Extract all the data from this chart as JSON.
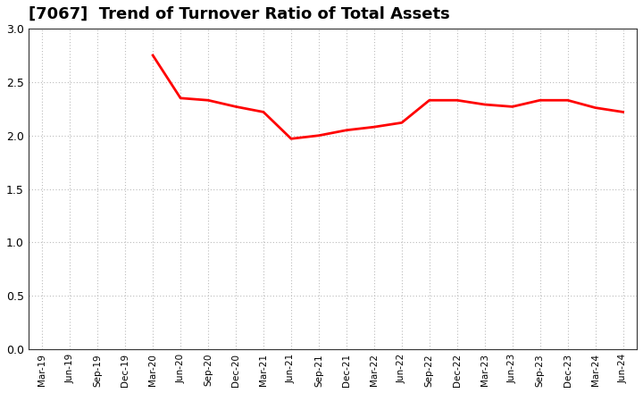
{
  "title": "[7067]  Trend of Turnover Ratio of Total Assets",
  "title_fontsize": 13,
  "line_color": "#FF0000",
  "line_width": 2.0,
  "background_color": "#FFFFFF",
  "grid_color": "#BBBBBB",
  "ylim": [
    0.0,
    3.0
  ],
  "yticks": [
    0.0,
    0.5,
    1.0,
    1.5,
    2.0,
    2.5,
    3.0
  ],
  "x_labels": [
    "Mar-19",
    "Jun-19",
    "Sep-19",
    "Dec-19",
    "Mar-20",
    "Jun-20",
    "Sep-20",
    "Dec-20",
    "Mar-21",
    "Jun-21",
    "Sep-21",
    "Dec-21",
    "Mar-22",
    "Jun-22",
    "Sep-22",
    "Dec-22",
    "Mar-23",
    "Jun-23",
    "Sep-23",
    "Dec-23",
    "Mar-24",
    "Jun-24"
  ],
  "values": [
    null,
    null,
    null,
    null,
    2.75,
    2.35,
    2.33,
    2.27,
    2.22,
    1.97,
    2.0,
    2.05,
    2.08,
    2.12,
    2.33,
    2.33,
    2.29,
    2.27,
    2.33,
    2.33,
    2.26,
    2.22
  ]
}
